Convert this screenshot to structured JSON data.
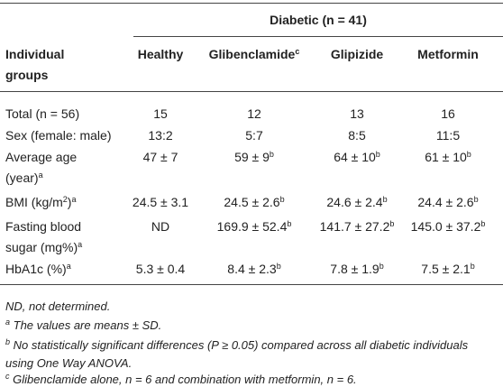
{
  "header": {
    "group_title": [
      [
        {
          "text": "Diabetic (n = 41)"
        }
      ]
    ],
    "columns": [
      [
        [
          {
            "text": "Individual"
          }
        ],
        [
          {
            "text": "groups"
          }
        ]
      ],
      [
        [
          {
            "text": "Healthy"
          }
        ]
      ],
      [
        [
          {
            "text": "Glibenclamide"
          },
          {
            "sup": "c"
          }
        ]
      ],
      [
        [
          {
            "text": "Glipizide"
          }
        ]
      ],
      [
        [
          {
            "text": "Metformin"
          }
        ]
      ]
    ]
  },
  "table": {
    "rows": [
      [
        [
          [
            {
              "text": "Total (n = 56)"
            }
          ]
        ],
        [
          [
            {
              "text": "15"
            }
          ]
        ],
        [
          [
            {
              "text": "12"
            }
          ]
        ],
        [
          [
            {
              "text": "13"
            }
          ]
        ],
        [
          [
            {
              "text": "16"
            }
          ]
        ]
      ],
      [
        [
          [
            {
              "text": "Sex (female: male)"
            }
          ]
        ],
        [
          [
            {
              "text": "13:2"
            }
          ]
        ],
        [
          [
            {
              "text": "5:7"
            }
          ]
        ],
        [
          [
            {
              "text": "8:5"
            }
          ]
        ],
        [
          [
            {
              "text": "11:5"
            }
          ]
        ]
      ],
      [
        [
          [
            {
              "text": "Average age"
            }
          ],
          [
            {
              "text": "(year)"
            },
            {
              "sup": "a"
            }
          ]
        ],
        [
          [
            {
              "text": "47 ± 7"
            }
          ]
        ],
        [
          [
            {
              "text": "59 ± 9"
            },
            {
              "sup": "b"
            }
          ]
        ],
        [
          [
            {
              "text": "64 ± 10"
            },
            {
              "sup": "b"
            }
          ]
        ],
        [
          [
            {
              "text": "61 ± 10"
            },
            {
              "sup": "b"
            }
          ]
        ]
      ],
      [
        [
          [
            {
              "text": "BMI (kg/m"
            },
            {
              "sup": "2"
            },
            {
              "text": ")"
            },
            {
              "sup": "a"
            }
          ]
        ],
        [
          [
            {
              "text": "24.5 ± 3.1"
            }
          ]
        ],
        [
          [
            {
              "text": "24.5 ± 2.6"
            },
            {
              "sup": "b"
            }
          ]
        ],
        [
          [
            {
              "text": "24.6 ± 2.4"
            },
            {
              "sup": "b"
            }
          ]
        ],
        [
          [
            {
              "text": "24.4 ± 2.6"
            },
            {
              "sup": "b"
            }
          ]
        ]
      ],
      [
        [
          [
            {
              "text": "Fasting blood"
            }
          ],
          [
            {
              "text": "sugar (mg%)"
            },
            {
              "sup": "a"
            }
          ]
        ],
        [
          [
            {
              "text": "ND"
            }
          ]
        ],
        [
          [
            {
              "text": "169.9 ± 52.4"
            },
            {
              "sup": "b"
            }
          ]
        ],
        [
          [
            {
              "text": "141.7 ± 27.2"
            },
            {
              "sup": "b"
            }
          ]
        ],
        [
          [
            {
              "text": "145.0 ± 37.2"
            },
            {
              "sup": "b"
            }
          ]
        ]
      ],
      [
        [
          [
            {
              "text": "HbA1c (%)"
            },
            {
              "sup": "a"
            }
          ]
        ],
        [
          [
            {
              "text": "5.3 ± 0.4"
            }
          ]
        ],
        [
          [
            {
              "text": "8.4 ± 2.3"
            },
            {
              "sup": "b"
            }
          ]
        ],
        [
          [
            {
              "text": "7.8 ± 1.9"
            },
            {
              "sup": "b"
            }
          ]
        ],
        [
          [
            {
              "text": "7.5 ± 2.1"
            },
            {
              "sup": "b"
            }
          ]
        ]
      ]
    ]
  },
  "footnotes": [
    [
      [
        {
          "text": "ND, not determined."
        }
      ]
    ],
    [
      [
        {
          "sup": "a"
        },
        {
          "text": " The values are means ± SD."
        }
      ]
    ],
    [
      [
        {
          "sup": "b"
        },
        {
          "text": " No statistically significant differences (P ≥ 0.05) compared across all diabetic individuals"
        }
      ],
      [
        {
          "text": "using One Way ANOVA."
        }
      ]
    ],
    [
      [
        {
          "sup": "c"
        },
        {
          "text": " Glibenclamide alone, n = 6 and combination with metformin, n = 6."
        }
      ]
    ]
  ]
}
